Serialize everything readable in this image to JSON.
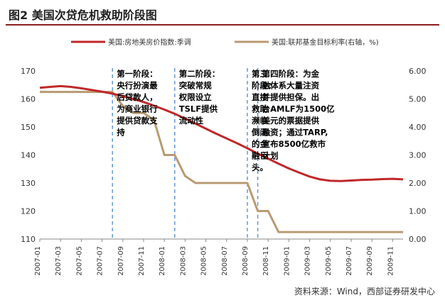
{
  "figure": {
    "title": "图2  美国次贷危机救助阶段图",
    "source": "资料来源：Wind，西部证券研发中心"
  },
  "colors": {
    "hpi": "#c0282a",
    "fed": "#b89a72",
    "phase_line": "#5b8fd6",
    "grid": "#d9d9d9",
    "axis_text": "#333333",
    "title_rule": "#8a1c1c"
  },
  "chart_data": {
    "type": "line",
    "x_tick_labels": [
      "2007-01",
      "2007-03",
      "2007-05",
      "2007-07",
      "2007-09",
      "2007-11",
      "2008-01",
      "2008-03",
      "2008-05",
      "2008-07",
      "2008-09",
      "2008-11",
      "2009-01",
      "2009-03",
      "2009-05",
      "2009-07",
      "2009-09",
      "2009-11"
    ],
    "x_range": [
      "2007-01",
      "2009-12"
    ],
    "y_left": {
      "min": 110,
      "max": 170,
      "ticks": [
        110,
        120,
        130,
        140,
        150,
        160,
        170
      ]
    },
    "y_right": {
      "min": 0,
      "max": 6,
      "ticks": [
        "0.00",
        "1.00",
        "2.00",
        "3.00",
        "4.00",
        "5.00",
        "6.00"
      ]
    },
    "legend_position": "top",
    "grid": false,
    "series": [
      {
        "name": "美国:房地美房价指数:季调",
        "axis": "left",
        "points": [
          [
            "2007-01",
            164.0
          ],
          [
            "2007-02",
            164.3
          ],
          [
            "2007-03",
            164.6
          ],
          [
            "2007-04",
            164.3
          ],
          [
            "2007-05",
            163.8
          ],
          [
            "2007-06",
            163.2
          ],
          [
            "2007-07",
            162.6
          ],
          [
            "2007-08",
            161.9
          ],
          [
            "2007-09",
            161.0
          ],
          [
            "2007-10",
            160.0
          ],
          [
            "2007-11",
            158.9
          ],
          [
            "2007-12",
            157.6
          ],
          [
            "2008-01",
            156.2
          ],
          [
            "2008-02",
            154.7
          ],
          [
            "2008-03",
            153.0
          ],
          [
            "2008-04",
            151.2
          ],
          [
            "2008-05",
            149.4
          ],
          [
            "2008-06",
            147.6
          ],
          [
            "2008-07",
            145.9
          ],
          [
            "2008-08",
            144.2
          ],
          [
            "2008-09",
            142.4
          ],
          [
            "2008-10",
            140.5
          ],
          [
            "2008-11",
            138.7
          ],
          [
            "2008-12",
            136.9
          ],
          [
            "2009-01",
            135.2
          ],
          [
            "2009-02",
            133.7
          ],
          [
            "2009-03",
            132.3
          ],
          [
            "2009-04",
            131.3
          ],
          [
            "2009-05",
            130.8
          ],
          [
            "2009-06",
            130.7
          ],
          [
            "2009-07",
            130.9
          ],
          [
            "2009-08",
            131.1
          ],
          [
            "2009-09",
            131.2
          ],
          [
            "2009-10",
            131.4
          ],
          [
            "2009-11",
            131.5
          ],
          [
            "2009-12",
            131.3
          ]
        ]
      },
      {
        "name": "美国:联邦基金目标利率(右轴，%)",
        "axis": "right",
        "points": [
          [
            "2007-01",
            5.25
          ],
          [
            "2007-02",
            5.25
          ],
          [
            "2007-03",
            5.25
          ],
          [
            "2007-04",
            5.25
          ],
          [
            "2007-05",
            5.25
          ],
          [
            "2007-06",
            5.25
          ],
          [
            "2007-07",
            5.25
          ],
          [
            "2007-08",
            5.25
          ],
          [
            "2007-09",
            4.75
          ],
          [
            "2007-10",
            4.5
          ],
          [
            "2007-11",
            4.5
          ],
          [
            "2007-12",
            4.25
          ],
          [
            "2008-01",
            3.0
          ],
          [
            "2008-02",
            3.0
          ],
          [
            "2008-03",
            2.25
          ],
          [
            "2008-04",
            2.0
          ],
          [
            "2008-05",
            2.0
          ],
          [
            "2008-06",
            2.0
          ],
          [
            "2008-07",
            2.0
          ],
          [
            "2008-08",
            2.0
          ],
          [
            "2008-09",
            2.0
          ],
          [
            "2008-10",
            1.0
          ],
          [
            "2008-11",
            1.0
          ],
          [
            "2008-12",
            0.25
          ],
          [
            "2009-01",
            0.25
          ],
          [
            "2009-02",
            0.25
          ],
          [
            "2009-03",
            0.25
          ],
          [
            "2009-04",
            0.25
          ],
          [
            "2009-05",
            0.25
          ],
          [
            "2009-06",
            0.25
          ],
          [
            "2009-07",
            0.25
          ],
          [
            "2009-08",
            0.25
          ],
          [
            "2009-09",
            0.25
          ],
          [
            "2009-10",
            0.25
          ],
          [
            "2009-11",
            0.25
          ],
          [
            "2009-12",
            0.25
          ]
        ]
      }
    ],
    "phase_boundaries": [
      "2007-08",
      "2008-02",
      "2008-09",
      "2008-10"
    ],
    "annotations": [
      {
        "id": "phase1",
        "start": "2007-08",
        "lines": [
          "第一阶段：",
          "央行扮演最",
          "后贷款人，",
          "为商业银行",
          "提供贷款支",
          "持"
        ]
      },
      {
        "id": "phase2",
        "start": "2008-02",
        "lines": [
          "第二阶段：",
          "突破常规",
          "权限设立",
          "TSLF提供",
          "流动性"
        ]
      },
      {
        "id": "phase3",
        "start": "2008-09",
        "lines": [
          "第三",
          "阶段：",
          "直接",
          "救助",
          "濒临",
          "倒闭",
          "的金",
          "融巨",
          "头。"
        ]
      },
      {
        "id": "phase4",
        "start": "2008-10",
        "lines": [
          "第四阶段：为金",
          "融体系大量注资",
          "并提供担保。出",
          "台AMLF为1500亿",
          "美元的票据提供",
          "融资；通过TARP,",
          "宣布8500亿救市",
          "计划"
        ]
      }
    ]
  }
}
